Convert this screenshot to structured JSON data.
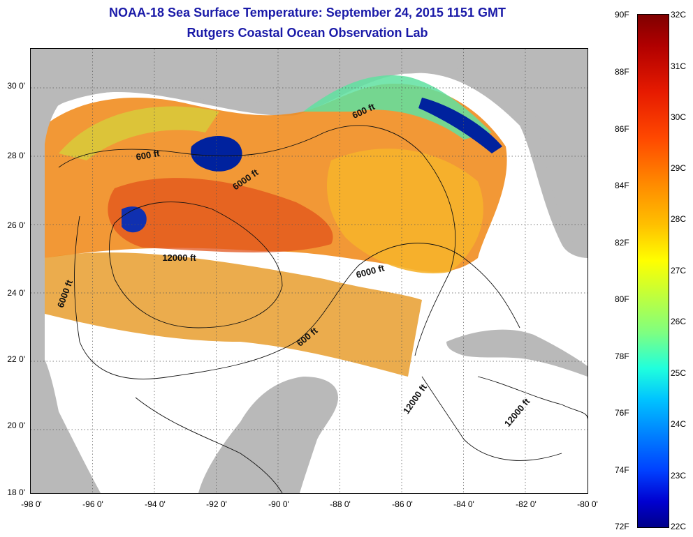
{
  "title": "NOAA-18 Sea Surface Temperature:  September 24, 2015 1151 GMT",
  "subtitle": "Rutgers Coastal Ocean Observation Lab",
  "map": {
    "lon_range": [
      -98,
      -80
    ],
    "lat_range": [
      18,
      31
    ],
    "grid": true,
    "lat_ticks": [
      "30 0'",
      "28 0'",
      "26 0'",
      "24 0'",
      "22 0'",
      "20 0'",
      "18 0'"
    ],
    "lon_ticks": [
      "-98 0'",
      "-96 0'",
      "-94 0'",
      "-92 0'",
      "-90 0'",
      "-88 0'",
      "-86 0'",
      "-84 0'",
      "-82 0'",
      "-80 0'"
    ],
    "land_color": "#b9b9b9",
    "nodata_color": "#ffffff",
    "contour_labels": [
      {
        "text": "600 ft",
        "lon": -87.2,
        "lat": 29.1
      },
      {
        "text": "600 ft",
        "lon": -94.2,
        "lat": 27.8
      },
      {
        "text": "6000 ft",
        "lon": -91.0,
        "lat": 27.1
      },
      {
        "text": "12000 ft",
        "lon": -93.2,
        "lat": 24.8
      },
      {
        "text": "6000 ft",
        "lon": -87.0,
        "lat": 24.4
      },
      {
        "text": "6000 ft",
        "lon": -96.8,
        "lat": 23.8
      },
      {
        "text": "600 ft",
        "lon": -89.0,
        "lat": 22.5
      },
      {
        "text": "12000 ft",
        "lon": -85.5,
        "lat": 20.7
      },
      {
        "text": "12000 ft",
        "lon": -82.2,
        "lat": 20.3
      }
    ]
  },
  "colorbar": {
    "f_labels": [
      "90F",
      "88F",
      "86F",
      "84F",
      "82F",
      "80F",
      "78F",
      "76F",
      "74F",
      "72F"
    ],
    "c_labels": [
      "32C",
      "31C",
      "30C",
      "29C",
      "28C",
      "27C",
      "26C",
      "25C",
      "24C",
      "23C",
      "22C"
    ],
    "f_range": [
      72,
      90
    ],
    "c_range": [
      22,
      32
    ]
  }
}
